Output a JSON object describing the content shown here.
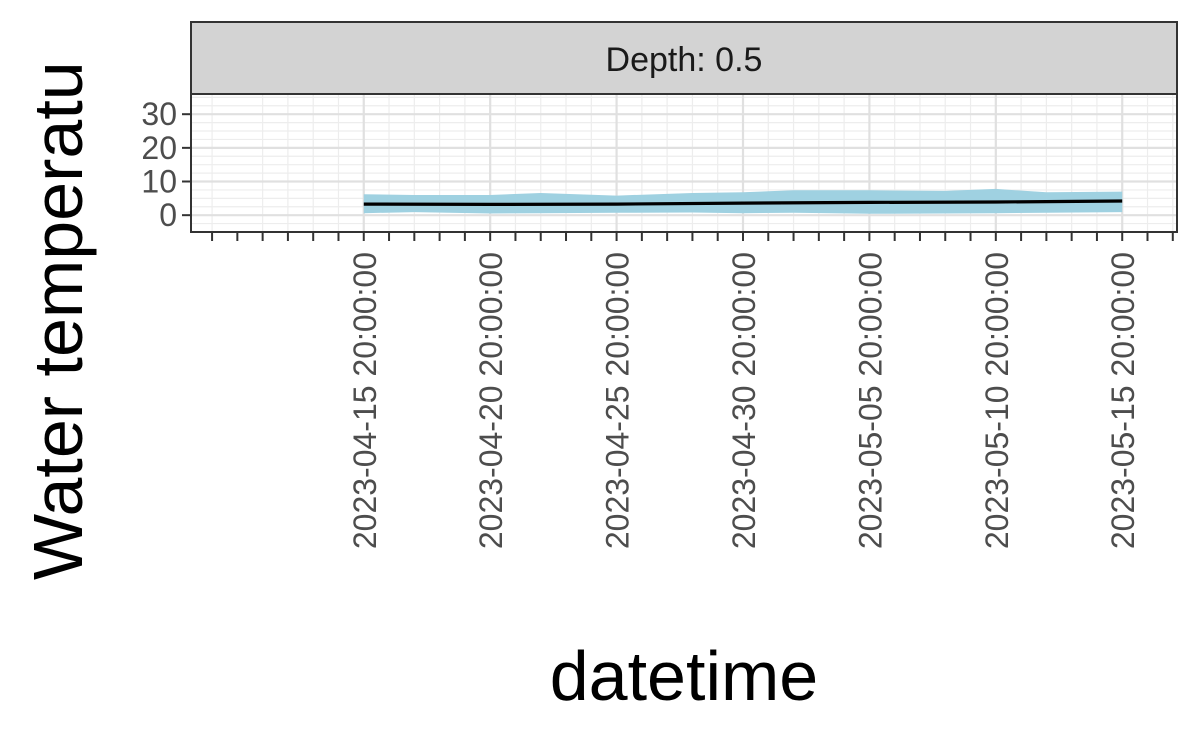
{
  "chart_data": {
    "type": "line",
    "facet_label": "Depth: 0.5",
    "xlabel": "datetime",
    "ylabel": "Water temperatu",
    "ylim": [
      -5,
      36
    ],
    "y_ticks": [
      0,
      10,
      20,
      30
    ],
    "y_tick_labels": [
      "0",
      "10",
      "20",
      "30"
    ],
    "x_range": [
      "2023-04-09",
      "2023-05-18"
    ],
    "x_ticks": [
      "2023-04-15 20:00:00",
      "2023-04-20 20:00:00",
      "2023-04-25 20:00:00",
      "2023-04-30 20:00:00",
      "2023-05-05 20:00:00",
      "2023-05-10 20:00:00",
      "2023-05-15 20:00:00"
    ],
    "x_tick_labels": [
      "2023-04-15 20:00:00",
      "2023-04-20 20:00:00",
      "2023-04-25 20:00:00",
      "2023-04-30 20:00:00",
      "2023-05-05 20:00:00",
      "2023-05-10 20:00:00",
      "2023-05-15 20:00:00"
    ],
    "grid": true,
    "series": [
      {
        "type": "line",
        "color": "#000000",
        "x": [
          "2023-04-15 20:00:00",
          "2023-04-20 20:00:00",
          "2023-04-25 20:00:00",
          "2023-04-30 20:00:00",
          "2023-05-05 20:00:00",
          "2023-05-10 20:00:00",
          "2023-05-15 20:00:00"
        ],
        "y": [
          3.3,
          3.2,
          3.3,
          3.6,
          3.8,
          3.9,
          4.2
        ]
      },
      {
        "type": "ribbon",
        "color": "#9fd1e1",
        "x": [
          "2023-04-15 20:00:00",
          "2023-04-17 20:00:00",
          "2023-04-20 20:00:00",
          "2023-04-22 20:00:00",
          "2023-04-25 20:00:00",
          "2023-04-28 20:00:00",
          "2023-04-30 20:00:00",
          "2023-05-02 20:00:00",
          "2023-05-05 20:00:00",
          "2023-05-08 20:00:00",
          "2023-05-10 20:00:00",
          "2023-05-12 20:00:00",
          "2023-05-15 20:00:00"
        ],
        "upper": [
          6.2,
          6.0,
          6.0,
          6.6,
          5.8,
          6.6,
          6.8,
          7.4,
          7.4,
          7.2,
          7.8,
          6.8,
          7.0
        ],
        "lower": [
          0.6,
          0.9,
          0.5,
          0.6,
          0.7,
          0.8,
          0.6,
          0.7,
          0.4,
          0.5,
          0.6,
          0.7,
          0.9
        ]
      }
    ]
  }
}
